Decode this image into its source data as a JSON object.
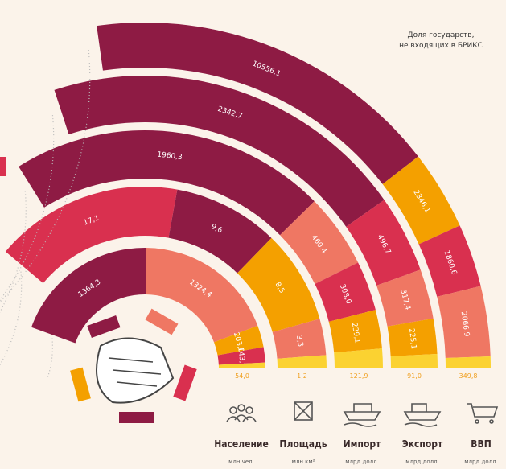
{
  "chart_data": {
    "type": "radial-bar",
    "note": [
      "Доля государств,",
      "не входящих в БРИКС"
    ],
    "arcs": [
      {
        "name": "Население",
        "unit": "млн чел.",
        "segments": [
          {
            "value": 1364.3,
            "value_label": "1364,3",
            "color": "#8e1b44"
          },
          {
            "value": 1324.4,
            "value_label": "1324,4",
            "color": "#ef7763"
          },
          {
            "value": 203.0,
            "value_label": "203,0",
            "color": "#f4a000"
          },
          {
            "value": 143.8,
            "value_label": "143,8",
            "color": "#d9304f"
          },
          {
            "value": 54.0,
            "value_label": "54,0",
            "color": "#fbd231"
          }
        ]
      },
      {
        "name": "Площадь",
        "unit": "млн км²",
        "segments": [
          {
            "value": 17.1,
            "value_label": "17,1",
            "color": "#d9304f"
          },
          {
            "value": 9.6,
            "value_label": "9,6",
            "color": "#8e1b44"
          },
          {
            "value": 8.5,
            "value_label": "8,5",
            "color": "#f4a000"
          },
          {
            "value": 3.3,
            "value_label": "3,3",
            "color": "#ef7763"
          },
          {
            "value": 1.2,
            "value_label": "1,2",
            "color": "#fbd231"
          }
        ]
      },
      {
        "name": "Импорт",
        "unit": "млрд долл.",
        "segments": [
          {
            "value": 1960.3,
            "value_label": "1960,3",
            "color": "#8e1b44"
          },
          {
            "value": 460.4,
            "value_label": "460,4",
            "color": "#ef7763"
          },
          {
            "value": 308.0,
            "value_label": "308,0",
            "color": "#d9304f"
          },
          {
            "value": 239.1,
            "value_label": "239,1",
            "color": "#f4a000"
          },
          {
            "value": 121.9,
            "value_label": "121,9",
            "color": "#fbd231"
          }
        ]
      },
      {
        "name": "Экспорт",
        "unit": "млрд долл.",
        "segments": [
          {
            "value": 2342.7,
            "value_label": "2342,7",
            "color": "#8e1b44"
          },
          {
            "value": 496.7,
            "value_label": "496,7",
            "color": "#d9304f"
          },
          {
            "value": 317.4,
            "value_label": "317,4",
            "color": "#ef7763"
          },
          {
            "value": 225.1,
            "value_label": "225,1",
            "color": "#f4a000"
          },
          {
            "value": 91.0,
            "value_label": "91,0",
            "color": "#fbd231"
          }
        ]
      },
      {
        "name": "ВВП",
        "unit": "млрд долл.",
        "segments": [
          {
            "value": 10556.1,
            "value_label": "10556,1",
            "color": "#8e1b44"
          },
          {
            "value": 2346.1,
            "value_label": "2346,1",
            "color": "#f4a000"
          },
          {
            "value": 1860.6,
            "value_label": "1860,6",
            "color": "#d9304f"
          },
          {
            "value": 2066.9,
            "value_label": "2066,9",
            "color": "#ef7763"
          },
          {
            "value": 349.8,
            "value_label": "349,8",
            "color": "#fbd231"
          }
        ]
      }
    ]
  }
}
